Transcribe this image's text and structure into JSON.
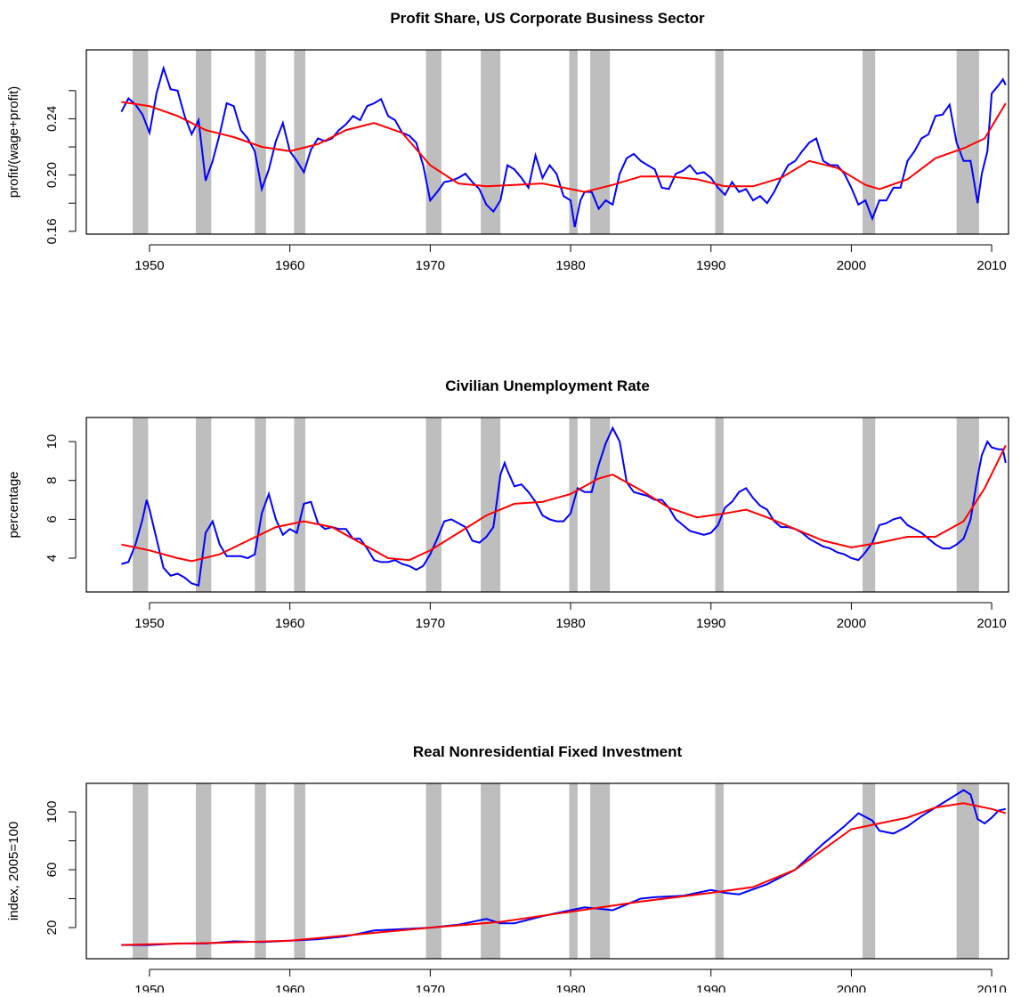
{
  "chart_data": [
    {
      "type": "line",
      "title": "Profit Share, US Corporate Business Sector",
      "ylabel": "profit/(wage+profit)",
      "xlim": [
        1945.5,
        2011.2
      ],
      "xticks": [
        1950,
        1960,
        1970,
        1980,
        1990,
        2000,
        2010
      ],
      "ylim": [
        0.158,
        0.289
      ],
      "yticks": [
        0.16,
        {
          "value": 0.2,
          "label": "0.20"
        },
        0.24
      ],
      "yminor": [
        0.18,
        0.22,
        0.26
      ],
      "shaded_regions": [
        [
          1948.8,
          1949.9
        ],
        [
          1953.3,
          1954.4
        ],
        [
          1957.5,
          1958.3
        ],
        [
          1960.3,
          1961.1
        ],
        [
          1969.7,
          1970.8
        ],
        [
          1973.6,
          1975.0
        ],
        [
          1979.9,
          1980.5
        ],
        [
          1981.4,
          1982.8
        ],
        [
          1990.3,
          1990.9
        ],
        [
          2000.8,
          2001.7
        ],
        [
          2007.5,
          2009.1
        ]
      ],
      "shade_color": "#bebebe",
      "series": [
        {
          "color": "#0000ff",
          "x": [
            1948,
            1948.5,
            1949,
            1949.5,
            1950,
            1950.5,
            1951,
            1951.5,
            1952,
            1952.5,
            1953,
            1953.5,
            1954,
            1954.5,
            1955,
            1955.5,
            1956,
            1956.5,
            1957,
            1957.5,
            1958,
            1958.5,
            1959,
            1959.5,
            1960,
            1960.5,
            1961,
            1961.5,
            1962,
            1962.5,
            1963,
            1963.5,
            1964,
            1964.5,
            1965,
            1965.5,
            1966,
            1966.5,
            1967,
            1967.5,
            1968,
            1968.5,
            1969,
            1969.5,
            1970,
            1970.5,
            1971,
            1971.5,
            1972,
            1972.5,
            1973,
            1973.5,
            1974,
            1974.5,
            1975,
            1975.5,
            1976,
            1976.5,
            1977,
            1977.5,
            1978,
            1978.5,
            1979,
            1979.5,
            1980,
            1980.3,
            1980.7,
            1981,
            1981.5,
            1982,
            1982.5,
            1983,
            1983.5,
            1984,
            1984.5,
            1985,
            1985.5,
            1986,
            1986.5,
            1987,
            1987.5,
            1988,
            1988.5,
            1989,
            1989.5,
            1990,
            1990.5,
            1991,
            1991.5,
            1992,
            1992.5,
            1993,
            1993.5,
            1994,
            1994.5,
            1995,
            1995.5,
            1996,
            1996.5,
            1997,
            1997.5,
            1998,
            1998.5,
            1999,
            1999.5,
            2000,
            2000.5,
            2001,
            2001.5,
            2002,
            2002.5,
            2003,
            2003.5,
            2004,
            2004.5,
            2005,
            2005.5,
            2006,
            2006.5,
            2007,
            2007.5,
            2008,
            2008.5,
            2009,
            2009.3,
            2009.7,
            2010,
            2010.5,
            2010.8,
            2011
          ],
          "values": [
            0.245,
            0.2545,
            0.25,
            0.243,
            0.23,
            0.258,
            0.276,
            0.261,
            0.26,
            0.242,
            0.229,
            0.239,
            0.196,
            0.21,
            0.229,
            0.251,
            0.249,
            0.232,
            0.226,
            0.217,
            0.19,
            0.204,
            0.224,
            0.237,
            0.217,
            0.21,
            0.202,
            0.218,
            0.226,
            0.224,
            0.226,
            0.232,
            0.236,
            0.242,
            0.239,
            0.249,
            0.251,
            0.254,
            0.242,
            0.239,
            0.23,
            0.228,
            0.223,
            0.207,
            0.182,
            0.188,
            0.195,
            0.196,
            0.198,
            0.201,
            0.195,
            0.19,
            0.179,
            0.174,
            0.182,
            0.207,
            0.204,
            0.198,
            0.191,
            0.214,
            0.198,
            0.207,
            0.201,
            0.185,
            0.182,
            0.163,
            0.182,
            0.188,
            0.188,
            0.176,
            0.182,
            0.179,
            0.201,
            0.212,
            0.215,
            0.21,
            0.207,
            0.204,
            0.191,
            0.19,
            0.201,
            0.203,
            0.207,
            0.201,
            0.202,
            0.198,
            0.191,
            0.186,
            0.195,
            0.188,
            0.19,
            0.182,
            0.185,
            0.18,
            0.188,
            0.198,
            0.207,
            0.21,
            0.217,
            0.223,
            0.226,
            0.21,
            0.207,
            0.207,
            0.201,
            0.191,
            0.179,
            0.182,
            0.169,
            0.182,
            0.182,
            0.191,
            0.191,
            0.21,
            0.217,
            0.226,
            0.229,
            0.242,
            0.243,
            0.25,
            0.223,
            0.21,
            0.21,
            0.18,
            0.201,
            0.217,
            0.258,
            0.264,
            0.268,
            0.264
          ]
        },
        {
          "color": "#ff0000",
          "x": [
            1948,
            1950,
            1952,
            1954,
            1956,
            1958,
            1960,
            1962,
            1964,
            1966,
            1968,
            1970,
            1972,
            1974,
            1976,
            1978,
            1980,
            1981,
            1983,
            1985,
            1987,
            1989,
            1991,
            1993,
            1995,
            1997,
            1999,
            2001,
            2002,
            2004,
            2006,
            2008,
            2009.5,
            2011
          ],
          "values": [
            0.252,
            0.249,
            0.242,
            0.232,
            0.227,
            0.22,
            0.217,
            0.222,
            0.232,
            0.237,
            0.23,
            0.207,
            0.194,
            0.192,
            0.193,
            0.194,
            0.19,
            0.188,
            0.193,
            0.199,
            0.199,
            0.197,
            0.192,
            0.192,
            0.198,
            0.21,
            0.205,
            0.193,
            0.19,
            0.197,
            0.212,
            0.219,
            0.226,
            0.251
          ]
        }
      ]
    },
    {
      "type": "line",
      "title": "Civilian Unemployment Rate",
      "ylabel": "percentage",
      "xlim": [
        1945.5,
        2011.2
      ],
      "xticks": [
        1950,
        1960,
        1970,
        1980,
        1990,
        2000,
        2010
      ],
      "ylim": [
        2.26,
        11.24
      ],
      "yticks": [
        4,
        6,
        8,
        10
      ],
      "shaded_regions": [
        [
          1948.8,
          1949.9
        ],
        [
          1953.3,
          1954.4
        ],
        [
          1957.5,
          1958.3
        ],
        [
          1960.3,
          1961.1
        ],
        [
          1969.7,
          1970.8
        ],
        [
          1973.6,
          1975.0
        ],
        [
          1979.9,
          1980.5
        ],
        [
          1981.4,
          1982.8
        ],
        [
          1990.3,
          1990.9
        ],
        [
          2000.8,
          2001.7
        ],
        [
          2007.5,
          2009.1
        ]
      ],
      "shade_color": "#bebebe",
      "series": [
        {
          "color": "#0000ff",
          "x": [
            1948,
            1948.5,
            1949,
            1949.5,
            1949.8,
            1950,
            1950.5,
            1951,
            1951.5,
            1952,
            1952.5,
            1953,
            1953.5,
            1954,
            1954.5,
            1955,
            1955.5,
            1956,
            1956.5,
            1957,
            1957.5,
            1958,
            1958.5,
            1959,
            1959.5,
            1960,
            1960.5,
            1961,
            1961.5,
            1962,
            1962.5,
            1963,
            1963.5,
            1964,
            1964.5,
            1965,
            1965.5,
            1966,
            1966.5,
            1967,
            1967.5,
            1968,
            1968.5,
            1969,
            1969.5,
            1970,
            1970.5,
            1971,
            1971.5,
            1972,
            1972.5,
            1973,
            1973.5,
            1974,
            1974.5,
            1975,
            1975.3,
            1975.5,
            1976,
            1976.5,
            1977,
            1977.5,
            1978,
            1978.5,
            1979,
            1979.5,
            1980,
            1980.5,
            1981,
            1981.5,
            1982,
            1982.5,
            1983,
            1983.5,
            1984,
            1984.5,
            1985,
            1985.5,
            1986,
            1986.5,
            1987,
            1987.5,
            1988,
            1988.5,
            1989,
            1989.5,
            1990,
            1990.5,
            1991,
            1991.5,
            1992,
            1992.5,
            1993,
            1993.5,
            1994,
            1994.5,
            1995,
            1995.5,
            1996,
            1996.5,
            1997,
            1997.5,
            1998,
            1998.5,
            1999,
            1999.5,
            2000,
            2000.5,
            2001,
            2001.5,
            2002,
            2002.5,
            2003,
            2003.5,
            2004,
            2004.5,
            2005,
            2005.5,
            2006,
            2006.5,
            2007,
            2007.5,
            2008,
            2008.5,
            2009,
            2009.3,
            2009.7,
            2010,
            2010.5,
            2010.8,
            2011
          ],
          "values": [
            3.7,
            3.8,
            4.7,
            6.0,
            7.0,
            6.5,
            5.0,
            3.5,
            3.1,
            3.2,
            3.0,
            2.7,
            2.6,
            5.3,
            5.9,
            4.7,
            4.1,
            4.1,
            4.1,
            4.0,
            4.2,
            6.3,
            7.3,
            6.0,
            5.2,
            5.5,
            5.3,
            6.8,
            6.9,
            5.8,
            5.5,
            5.6,
            5.5,
            5.5,
            5.0,
            5.0,
            4.5,
            3.9,
            3.8,
            3.8,
            3.9,
            3.7,
            3.6,
            3.4,
            3.6,
            4.2,
            5.0,
            5.9,
            6.0,
            5.8,
            5.6,
            4.9,
            4.8,
            5.1,
            5.6,
            8.3,
            8.9,
            8.5,
            7.7,
            7.8,
            7.4,
            6.9,
            6.2,
            6.0,
            5.9,
            5.9,
            6.3,
            7.6,
            7.4,
            7.4,
            8.8,
            9.9,
            10.7,
            10.0,
            7.9,
            7.4,
            7.3,
            7.2,
            7.0,
            7.0,
            6.6,
            6.0,
            5.7,
            5.4,
            5.3,
            5.2,
            5.3,
            5.7,
            6.6,
            6.9,
            7.4,
            7.6,
            7.1,
            6.7,
            6.5,
            5.9,
            5.6,
            5.6,
            5.5,
            5.3,
            5.0,
            4.8,
            4.6,
            4.5,
            4.3,
            4.2,
            4.0,
            3.9,
            4.3,
            4.8,
            5.7,
            5.8,
            6.0,
            6.1,
            5.7,
            5.5,
            5.3,
            5.0,
            4.7,
            4.5,
            4.5,
            4.7,
            5.0,
            6.0,
            8.2,
            9.3,
            10.0,
            9.7,
            9.6,
            9.6,
            8.9
          ]
        },
        {
          "color": "#ff0000",
          "x": [
            1948,
            1950,
            1952,
            1953,
            1955,
            1957,
            1959,
            1961,
            1963,
            1965,
            1967,
            1968.5,
            1970,
            1972,
            1974,
            1976,
            1978,
            1980,
            1982,
            1983,
            1985,
            1987,
            1989,
            1991,
            1992.5,
            1994,
            1996,
            1998,
            2000,
            2002,
            2004,
            2006,
            2008,
            2009.5,
            2011
          ],
          "values": [
            4.7,
            4.4,
            4.0,
            3.85,
            4.2,
            4.9,
            5.6,
            5.9,
            5.6,
            4.8,
            4.0,
            3.9,
            4.4,
            5.3,
            6.2,
            6.8,
            6.9,
            7.3,
            8.1,
            8.3,
            7.5,
            6.6,
            6.1,
            6.3,
            6.5,
            6.1,
            5.5,
            4.9,
            4.55,
            4.8,
            5.1,
            5.1,
            5.9,
            7.6,
            9.8
          ]
        }
      ]
    },
    {
      "type": "line",
      "title": "Real Nonresidential Fixed Investment",
      "ylabel": "index, 2005=100",
      "xlim": [
        1945.5,
        2011.2
      ],
      "xticks": [
        1950,
        1960,
        1970,
        1980,
        1990,
        2000,
        2010
      ],
      "ylim": [
        -1.5,
        119.7
      ],
      "yticks": [
        20,
        60,
        100
      ],
      "yminor": [
        40,
        80
      ],
      "shaded_regions": [
        [
          1948.8,
          1949.9
        ],
        [
          1953.3,
          1954.4
        ],
        [
          1957.5,
          1958.3
        ],
        [
          1960.3,
          1961.1
        ],
        [
          1969.7,
          1970.8
        ],
        [
          1973.6,
          1975.0
        ],
        [
          1979.9,
          1980.5
        ],
        [
          1981.4,
          1982.8
        ],
        [
          1990.3,
          1990.9
        ],
        [
          2000.8,
          2001.7
        ],
        [
          2007.5,
          2009.1
        ]
      ],
      "shade_color": "#bebebe",
      "series": [
        {
          "color": "#0000ff",
          "x": [
            1948,
            1950,
            1952,
            1954,
            1956,
            1958,
            1960,
            1962,
            1964,
            1966,
            1968,
            1970,
            1972,
            1974,
            1975,
            1976,
            1978,
            1980,
            1981,
            1983,
            1985,
            1986,
            1988,
            1990,
            1991,
            1992,
            1994,
            1996,
            1998,
            1999.5,
            2000.5,
            2001.5,
            2002,
            2003,
            2004,
            2005,
            2006,
            2007,
            2008,
            2008.5,
            2009,
            2009.5,
            2010,
            2010.5,
            2011
          ],
          "values": [
            8,
            8,
            9,
            9,
            10.5,
            10,
            11,
            12,
            14,
            18,
            19,
            20,
            22,
            26,
            23,
            23,
            28,
            32,
            34,
            32,
            40,
            41,
            42,
            46,
            44,
            43,
            50,
            60,
            78,
            90,
            99,
            94,
            87,
            85,
            90,
            97,
            103,
            109,
            115,
            112,
            95,
            92,
            96,
            101,
            102
          ]
        },
        {
          "color": "#ff0000",
          "x": [
            1948,
            1950,
            1955,
            1960,
            1965,
            1970,
            1975,
            1980,
            1985,
            1990,
            1993,
            1996,
            1998,
            2000,
            2002,
            2004,
            2006,
            2008,
            2010,
            2011
          ],
          "values": [
            8,
            8.5,
            9.5,
            11,
            15.5,
            20,
            24,
            31,
            38,
            44,
            48,
            60,
            74,
            88,
            92,
            96,
            103,
            106,
            102,
            99
          ]
        }
      ]
    }
  ]
}
